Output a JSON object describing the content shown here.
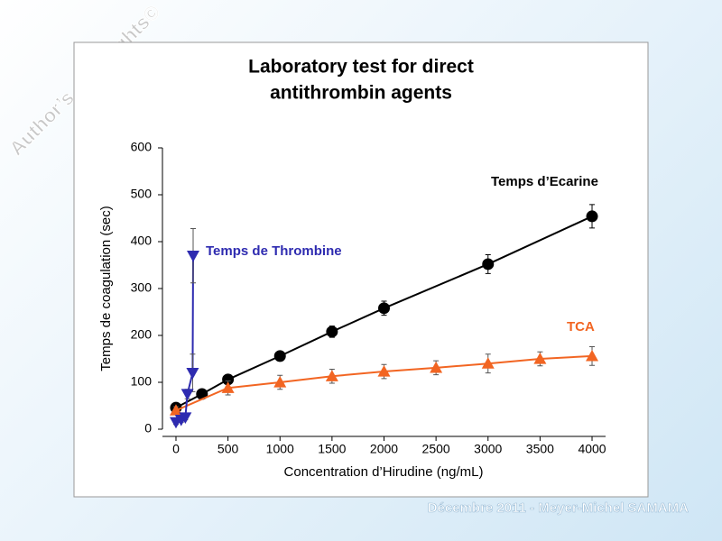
{
  "watermark": "Author’s copyrights©",
  "footer": "Décembre 2011 - Meyer-Michel SAMAMA",
  "chart_data": {
    "type": "line",
    "title": [
      "Laboratory test for direct",
      "antithrombin agents"
    ],
    "x_label": "Concentration d’Hirudine (ng/mL)",
    "y_label": "Temps de coagulation (sec)",
    "xlim": [
      -130,
      4130
    ],
    "ylim": [
      0,
      600
    ],
    "xticks": [
      0,
      500,
      1000,
      1500,
      2000,
      2500,
      3000,
      3500,
      4000
    ],
    "yticks": [
      0,
      100,
      200,
      300,
      400,
      500,
      600
    ],
    "grid": false,
    "series": [
      {
        "name": "Temps d’Ecarine",
        "color": "#000000",
        "marker": "circle",
        "x": [
          0,
          250,
          500,
          1000,
          1500,
          2000,
          3000,
          4000
        ],
        "values": [
          46,
          75,
          106,
          156,
          208,
          258,
          352,
          454
        ],
        "errors": [
          8,
          8,
          10,
          10,
          12,
          15,
          20,
          25
        ]
      },
      {
        "name": "TCA",
        "color": "#f26522",
        "marker": "triangle-up",
        "x": [
          0,
          500,
          1000,
          1500,
          2000,
          2500,
          3000,
          3500,
          4000
        ],
        "values": [
          40,
          88,
          100,
          113,
          123,
          131,
          140,
          150,
          156
        ],
        "errors": [
          8,
          15,
          15,
          15,
          15,
          15,
          20,
          15,
          20
        ]
      },
      {
        "name": "Temps de Thrombine",
        "color": "#2e2bb0",
        "marker": "triangle-down",
        "x": [
          0,
          50,
          90,
          110,
          160,
          165
        ],
        "values": [
          15,
          20,
          25,
          75,
          120,
          370
        ],
        "errors": [
          5,
          5,
          5,
          10,
          40,
          58
        ]
      }
    ]
  }
}
